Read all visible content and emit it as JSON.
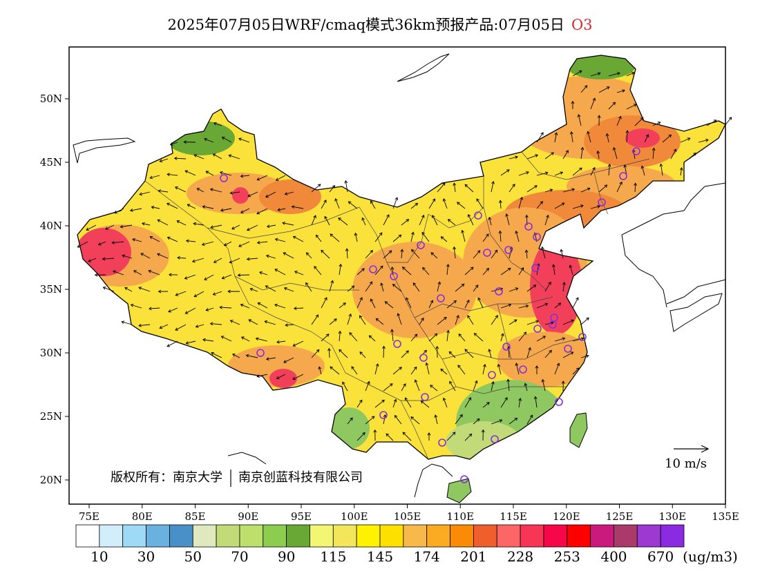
{
  "title": {
    "main": "2025年07月05日WRF/cmaq模式36km预报产品:07月05日",
    "species": "O3",
    "species_color": "#d8282c"
  },
  "axes": {
    "lon_ticks": [
      "75E",
      "80E",
      "85E",
      "90E",
      "95E",
      "100E",
      "105E",
      "110E",
      "115E",
      "120E",
      "125E",
      "130E",
      "135E"
    ],
    "lat_ticks": [
      "20N",
      "25N",
      "30N",
      "35N",
      "40N",
      "45N",
      "50N"
    ]
  },
  "copyright": {
    "left": "版权所有：南京大学",
    "right": "南京创蓝科技有限公司"
  },
  "wind_legend": {
    "label": "10 m/s"
  },
  "colorbar": {
    "colors": [
      "#ffffff",
      "#d2eefa",
      "#9ed9f5",
      "#6ab1df",
      "#4a90c8",
      "#dfe9bd",
      "#c2db78",
      "#bde06c",
      "#8ccc4e",
      "#6aa836",
      "#f3f673",
      "#f4e65a",
      "#fef200",
      "#fde000",
      "#f9b94a",
      "#fbab22",
      "#fb8a06",
      "#ef5e2c",
      "#fd6666",
      "#f73554",
      "#f5074a",
      "#fe0000",
      "#cb1a7e",
      "#a93a69",
      "#9b39d1",
      "#8a2be2"
    ],
    "labels": [
      "10",
      "30",
      "50",
      "70",
      "90",
      "115",
      "145",
      "174",
      "201",
      "228",
      "253",
      "400",
      "670",
      "(ug/m3)"
    ]
  },
  "map_colors": {
    "land_base": "#fbe23a",
    "orange": "#f6a84c",
    "deep_orange": "#f08a3a",
    "red": "#f2405a",
    "green": "#8fc860",
    "dark_green": "#6aa836",
    "light_green": "#c2db78",
    "site_marker": "#8a2be2"
  }
}
